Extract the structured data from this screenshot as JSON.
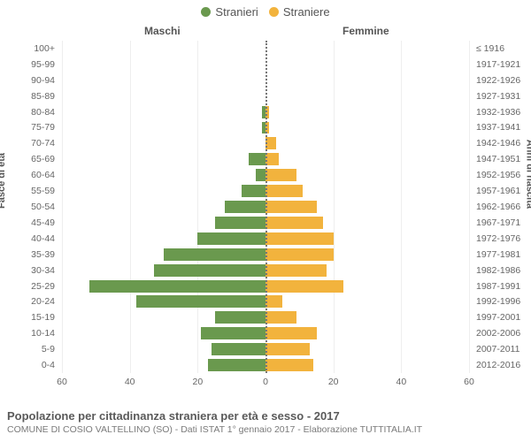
{
  "legend": {
    "male": {
      "label": "Stranieri",
      "color": "#6a994e"
    },
    "female": {
      "label": "Straniere",
      "color": "#f2b33d"
    }
  },
  "headers": {
    "male": "Maschi",
    "female": "Femmine"
  },
  "axis_titles": {
    "left": "Fasce di età",
    "right": "Anni di nascita"
  },
  "chart": {
    "type": "population-pyramid",
    "xmax": 60,
    "xticks": [
      60,
      40,
      20,
      0,
      20,
      40,
      60
    ],
    "background_color": "#ffffff",
    "grid_color": "#eeeeee",
    "male_color": "#6a994e",
    "female_color": "#f2b33d",
    "label_fontsize": 10.5,
    "rows": [
      {
        "age": "100+",
        "years": "≤ 1916",
        "m": 0,
        "f": 0
      },
      {
        "age": "95-99",
        "years": "1917-1921",
        "m": 0,
        "f": 0
      },
      {
        "age": "90-94",
        "years": "1922-1926",
        "m": 0,
        "f": 0
      },
      {
        "age": "85-89",
        "years": "1927-1931",
        "m": 0,
        "f": 0
      },
      {
        "age": "80-84",
        "years": "1932-1936",
        "m": 1,
        "f": 1
      },
      {
        "age": "75-79",
        "years": "1937-1941",
        "m": 1,
        "f": 1
      },
      {
        "age": "70-74",
        "years": "1942-1946",
        "m": 0,
        "f": 3
      },
      {
        "age": "65-69",
        "years": "1947-1951",
        "m": 5,
        "f": 4
      },
      {
        "age": "60-64",
        "years": "1952-1956",
        "m": 3,
        "f": 9
      },
      {
        "age": "55-59",
        "years": "1957-1961",
        "m": 7,
        "f": 11
      },
      {
        "age": "50-54",
        "years": "1962-1966",
        "m": 12,
        "f": 15
      },
      {
        "age": "45-49",
        "years": "1967-1971",
        "m": 15,
        "f": 17
      },
      {
        "age": "40-44",
        "years": "1972-1976",
        "m": 20,
        "f": 20
      },
      {
        "age": "35-39",
        "years": "1977-1981",
        "m": 30,
        "f": 20
      },
      {
        "age": "30-34",
        "years": "1982-1986",
        "m": 33,
        "f": 18
      },
      {
        "age": "25-29",
        "years": "1987-1991",
        "m": 52,
        "f": 23
      },
      {
        "age": "20-24",
        "years": "1992-1996",
        "m": 38,
        "f": 5
      },
      {
        "age": "15-19",
        "years": "1997-2001",
        "m": 15,
        "f": 9
      },
      {
        "age": "10-14",
        "years": "2002-2006",
        "m": 19,
        "f": 15
      },
      {
        "age": "5-9",
        "years": "2007-2011",
        "m": 16,
        "f": 13
      },
      {
        "age": "0-4",
        "years": "2012-2016",
        "m": 17,
        "f": 14
      }
    ]
  },
  "footer": {
    "title": "Popolazione per cittadinanza straniera per età e sesso - 2017",
    "subtitle": "COMUNE DI COSIO VALTELLINO (SO) - Dati ISTAT 1° gennaio 2017 - Elaborazione TUTTITALIA.IT"
  }
}
